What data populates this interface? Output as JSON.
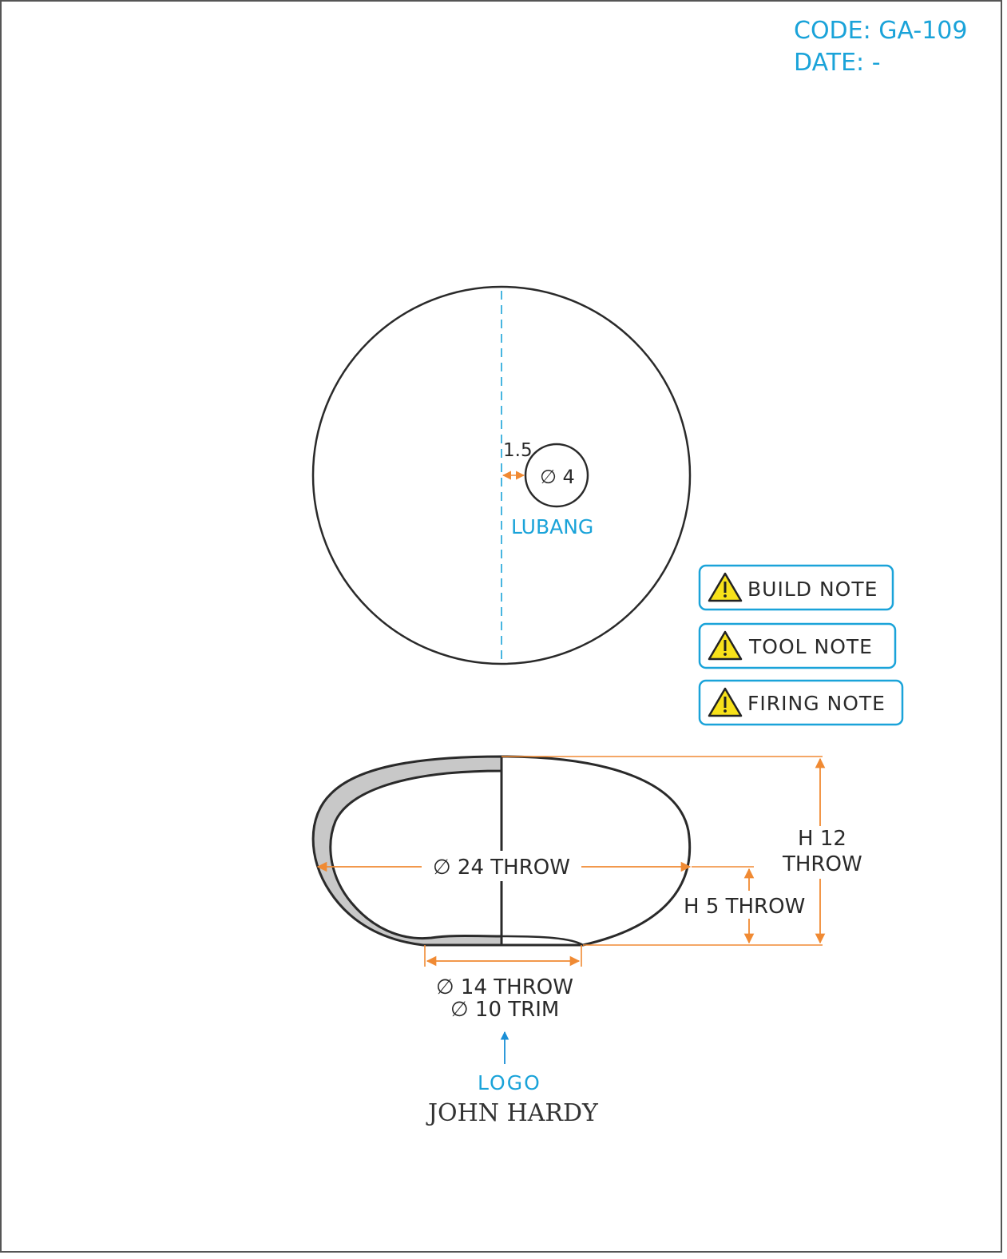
{
  "header": {
    "code": "CODE: GA-109",
    "date": "DATE: -"
  },
  "top_view": {
    "offset_label": "1.5",
    "hole_label": "∅ 4",
    "hole_name": "LUBANG"
  },
  "notes": [
    {
      "label": "BUILD NOTE",
      "icon": "warning-icon"
    },
    {
      "label": "TOOL NOTE",
      "icon": "warning-icon"
    },
    {
      "label": "FIRING NOTE",
      "icon": "warning-icon"
    }
  ],
  "side_view": {
    "diameter_label": "∅ 24  THROW",
    "height_total_line1": "H  12",
    "height_total_line2": "THROW",
    "height_partial_label": "H  5  THROW",
    "foot_line1": "∅ 14  THROW",
    "foot_line2": "∅ 10  TRIM"
  },
  "logo": {
    "caption": "LOGO",
    "brand": "JOHN HARDY"
  },
  "colors": {
    "accent_cyan": "#1aa3d9",
    "dimension_orange": "#f08a33",
    "outline": "#2a2a2a",
    "wall_fill": "#c8c8c8",
    "warning_yellow": "#f7e11a"
  }
}
